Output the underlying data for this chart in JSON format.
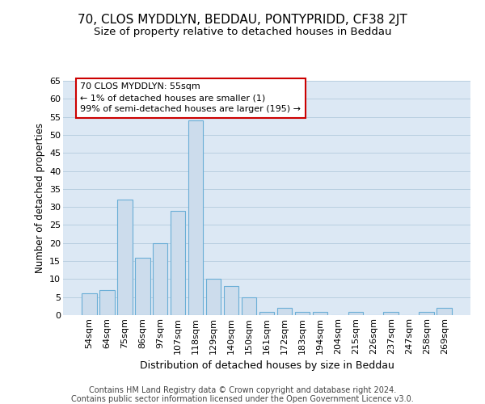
{
  "title_line1": "70, CLOS MYDDLYN, BEDDAU, PONTYPRIDD, CF38 2JT",
  "title_line2": "Size of property relative to detached houses in Beddau",
  "xlabel": "Distribution of detached houses by size in Beddau",
  "ylabel": "Number of detached properties",
  "categories": [
    "54sqm",
    "64sqm",
    "75sqm",
    "86sqm",
    "97sqm",
    "107sqm",
    "118sqm",
    "129sqm",
    "140sqm",
    "150sqm",
    "161sqm",
    "172sqm",
    "183sqm",
    "194sqm",
    "204sqm",
    "215sqm",
    "226sqm",
    "237sqm",
    "247sqm",
    "258sqm",
    "269sqm"
  ],
  "values": [
    6,
    7,
    32,
    16,
    20,
    29,
    54,
    10,
    8,
    5,
    1,
    2,
    1,
    1,
    0,
    1,
    0,
    1,
    0,
    1,
    2
  ],
  "bar_color": "#ccdcec",
  "bar_edge_color": "#6aaed6",
  "annotation_text": "70 CLOS MYDDLYN: 55sqm\n← 1% of detached houses are smaller (1)\n99% of semi-detached houses are larger (195) →",
  "annotation_box_color": "#ffffff",
  "annotation_box_edge_color": "#cc0000",
  "footer_line1": "Contains HM Land Registry data © Crown copyright and database right 2024.",
  "footer_line2": "Contains public sector information licensed under the Open Government Licence v3.0.",
  "ylim": [
    0,
    65
  ],
  "yticks": [
    0,
    5,
    10,
    15,
    20,
    25,
    30,
    35,
    40,
    45,
    50,
    55,
    60,
    65
  ],
  "bg_color": "#ffffff",
  "axes_bg_color": "#dce8f4",
  "grid_color": "#b8cfe0",
  "title_fontsize": 11,
  "subtitle_fontsize": 9.5,
  "ylabel_fontsize": 8.5,
  "xlabel_fontsize": 9,
  "tick_fontsize": 8,
  "annotation_fontsize": 8,
  "footer_fontsize": 7
}
